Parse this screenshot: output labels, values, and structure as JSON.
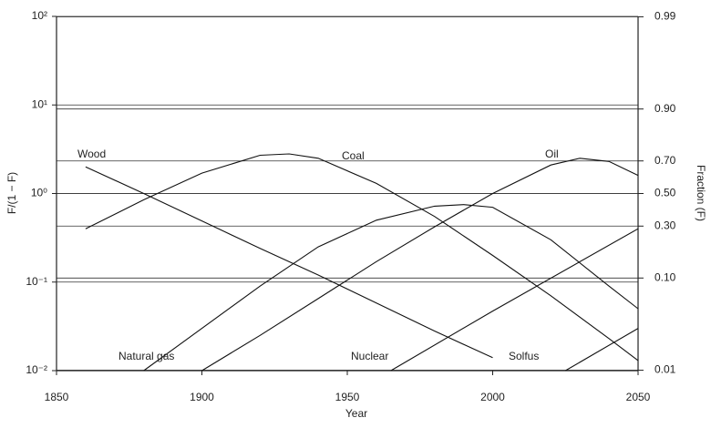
{
  "chart_data": {
    "type": "line",
    "xlabel": "Year",
    "ylabel": "F/(1 − F)",
    "y2label": "Fraction (F)",
    "xlim": [
      1850,
      2050
    ],
    "xticks": [
      1850,
      1900,
      1950,
      2000,
      2050
    ],
    "ylim": [
      0.01,
      100
    ],
    "yscale": "log",
    "yticks": [
      {
        "value": 0.01,
        "label": "10⁻²"
      },
      {
        "value": 0.1,
        "label": "10⁻¹"
      },
      {
        "value": 1,
        "label": "10⁰"
      },
      {
        "value": 10,
        "label": "10¹"
      },
      {
        "value": 100,
        "label": "10²"
      }
    ],
    "y2scale": "logit",
    "y2lim": [
      0.0099,
      0.9901
    ],
    "y2ticks": [
      {
        "value": 0.01,
        "label": "0.01"
      },
      {
        "value": 0.1,
        "label": "0.10"
      },
      {
        "value": 0.3,
        "label": "0.30"
      },
      {
        "value": 0.5,
        "label": "0.50"
      },
      {
        "value": 0.7,
        "label": "0.70"
      },
      {
        "value": 0.9,
        "label": "0.90"
      },
      {
        "value": 0.99,
        "label": "0.99"
      }
    ],
    "grid": true,
    "color": "#111111",
    "series": [
      {
        "name": "Wood",
        "x": [
          1860,
          1880,
          1900,
          1920,
          1940,
          1960,
          1980,
          2000
        ],
        "values": [
          2.0,
          1.0,
          0.49,
          0.24,
          0.12,
          0.058,
          0.028,
          0.014
        ]
      },
      {
        "name": "Coal",
        "x": [
          1860,
          1880,
          1900,
          1920,
          1930,
          1940,
          1960,
          1980,
          2000,
          2020,
          2040,
          2050
        ],
        "values": [
          0.4,
          0.85,
          1.7,
          2.7,
          2.8,
          2.5,
          1.3,
          0.55,
          0.2,
          0.07,
          0.023,
          0.013
        ]
      },
      {
        "name": "Oil",
        "x": [
          1880,
          1900,
          1920,
          1940,
          1960,
          1980,
          1990,
          2000,
          2020,
          2040,
          2050
        ],
        "values": [
          0.01,
          0.03,
          0.09,
          0.25,
          0.5,
          0.72,
          0.75,
          0.7,
          0.3,
          0.09,
          0.05
        ]
      },
      {
        "name": "Natural gas",
        "x": [
          1900,
          1920,
          1940,
          1960,
          1980,
          2000,
          2020,
          2030,
          2040,
          2050
        ],
        "values": [
          0.01,
          0.025,
          0.065,
          0.17,
          0.42,
          1.0,
          2.1,
          2.5,
          2.3,
          1.6
        ]
      },
      {
        "name": "Nuclear",
        "x": [
          1965,
          2000,
          2050
        ],
        "values": [
          0.01,
          0.047,
          0.4
        ]
      },
      {
        "name": "Solfus",
        "x": [
          2025,
          2050
        ],
        "values": [
          0.01,
          0.03
        ]
      }
    ]
  }
}
